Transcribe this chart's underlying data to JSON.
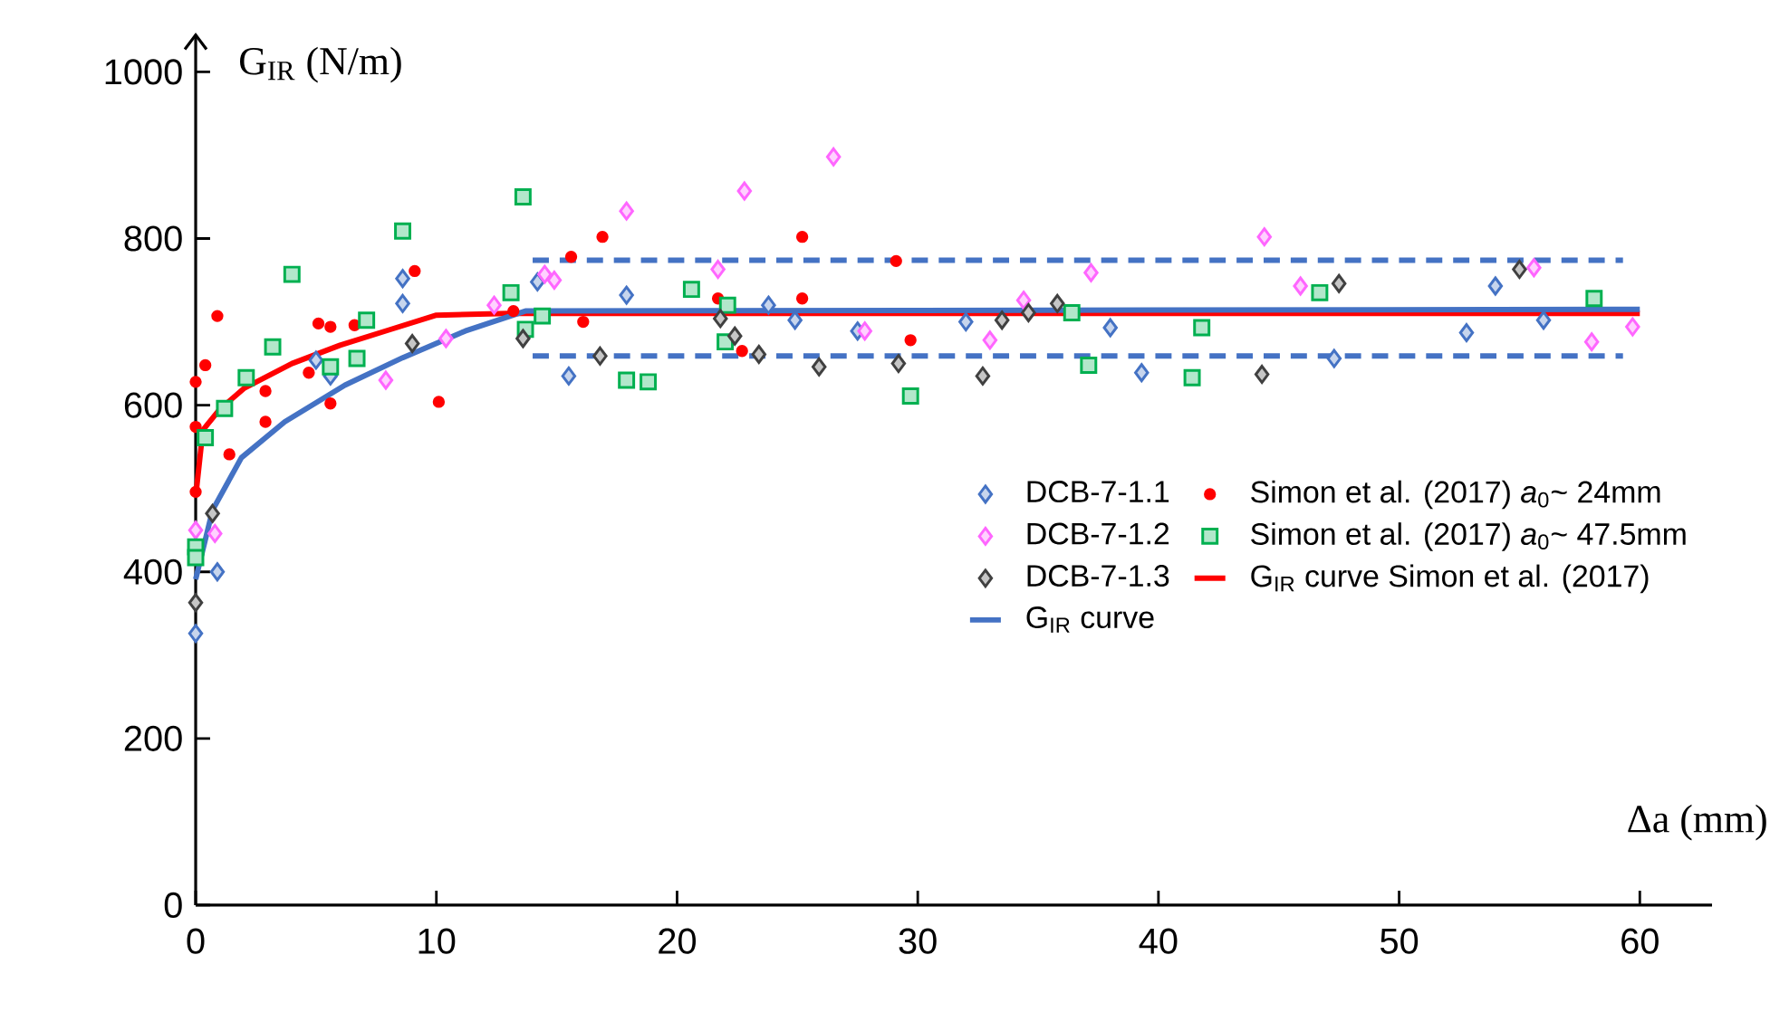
{
  "chart_data": {
    "type": "scatter",
    "xlabel": "Δa (mm)",
    "ylabel": "G$_{IR}$ (N/m)",
    "xlim": [
      0,
      63
    ],
    "ylim": [
      0,
      1045
    ],
    "xticks": [
      0,
      10,
      20,
      30,
      40,
      50,
      60
    ],
    "yticks": [
      0,
      200,
      400,
      600,
      800,
      1000
    ],
    "grid": false,
    "legend": "right",
    "series": [
      {
        "name": "DCB-7-1.1",
        "marker": "diamond",
        "color": "#4472c4",
        "x": [
          0,
          0.9,
          8.6,
          8.6,
          5.0,
          5.6,
          14.2,
          15.5,
          17.9,
          23.8,
          24.9,
          27.5,
          32.0,
          38.0,
          39.3,
          47.3,
          52.8,
          54.0,
          56.0
        ],
        "values": [
          326,
          400,
          752,
          722,
          654,
          635,
          748,
          635,
          732,
          720,
          702,
          689,
          700,
          693,
          639,
          656,
          687,
          743,
          702
        ]
      },
      {
        "name": "Simon et al. (2017) *a*$_{0}$~ 24mm",
        "marker": "circle",
        "color": "#ff0000",
        "x": [
          0.9,
          0.4,
          0,
          0,
          1.4,
          0,
          2.9,
          2.9,
          4.7,
          5.1,
          5.6,
          6.6,
          5.6,
          9.1,
          10.1,
          15.6,
          16.1,
          16.9,
          13.2,
          21.7,
          22.7,
          25.2,
          25.2,
          29.1,
          29.7
        ],
        "values": [
          707,
          648,
          628,
          574,
          541,
          496,
          617,
          580,
          639,
          698,
          694,
          696,
          602,
          761,
          604,
          778,
          700,
          802,
          713,
          728,
          665,
          802,
          728,
          773,
          678
        ]
      },
      {
        "name": "DCB-7-1.2",
        "marker": "diamond",
        "color": "#ff66ff",
        "x": [
          0,
          0.8,
          7.9,
          10.4,
          12.4,
          14.5,
          14.9,
          17.9,
          22.8,
          26.5,
          21.7,
          27.8,
          33.0,
          34.4,
          37.2,
          44.4,
          45.9,
          55.6,
          58.0,
          59.7
        ],
        "values": [
          450,
          446,
          630,
          680,
          720,
          757,
          750,
          833,
          857,
          898,
          763,
          689,
          678,
          726,
          759,
          802,
          743,
          765,
          676,
          694
        ]
      },
      {
        "name": "Simon et al. (2017) *a*$_{0}$~ 47.5mm",
        "marker": "square",
        "color": "#00b050",
        "x": [
          0,
          0,
          0.4,
          1.2,
          2.1,
          3.2,
          4.0,
          5.6,
          6.7,
          7.1,
          8.6,
          13.1,
          13.6,
          13.7,
          14.4,
          17.9,
          18.8,
          20.6,
          22.1,
          22.0,
          29.7,
          36.4,
          37.1,
          41.8,
          41.4,
          46.7,
          58.1
        ],
        "values": [
          430,
          417,
          561,
          596,
          633,
          670,
          757,
          646,
          656,
          702,
          809,
          735,
          850,
          691,
          707,
          630,
          628,
          739,
          720,
          676,
          611,
          711,
          648,
          693,
          633,
          735,
          728
        ]
      },
      {
        "name": "DCB-7-1.3",
        "marker": "diamond",
        "color": "#404040",
        "x": [
          0,
          0.7,
          9.0,
          13.6,
          16.8,
          21.8,
          22.4,
          23.4,
          25.9,
          29.2,
          32.7,
          33.5,
          34.6,
          35.8,
          47.5,
          44.3,
          55.0
        ],
        "values": [
          363,
          470,
          674,
          680,
          659,
          704,
          683,
          661,
          646,
          650,
          635,
          702,
          711,
          722,
          746,
          637,
          763
        ]
      },
      {
        "name": "G$_{IR}$ curve Simon et al. (2017)",
        "type": "line",
        "marker": "none",
        "line_style": "solid",
        "color": "#ff0000",
        "x": [
          0,
          0.3,
          1,
          2,
          4,
          6,
          8,
          10,
          13,
          60
        ],
        "values": [
          490,
          570,
          595,
          620,
          650,
          672,
          690,
          708,
          710,
          710
        ]
      },
      {
        "name": "G$_{IR}$ curve",
        "type": "line",
        "marker": "none",
        "line_style": "solid",
        "color": "#4472c4",
        "x": [
          0,
          0.7,
          1.9,
          3.7,
          6.2,
          8.6,
          11.2,
          13.7,
          60
        ],
        "values": [
          391,
          474,
          537,
          580,
          624,
          657,
          689,
          713,
          715
        ]
      },
      {
        "type": "line",
        "marker": "none",
        "line_style": "dashed",
        "color": "#4472c4",
        "x": [
          14,
          59.3
        ],
        "values": [
          774,
          774
        ]
      },
      {
        "type": "line",
        "marker": "none",
        "line_style": "dashed",
        "color": "#4472c4",
        "x": [
          14,
          59.3
        ],
        "values": [
          659,
          659
        ]
      }
    ]
  }
}
